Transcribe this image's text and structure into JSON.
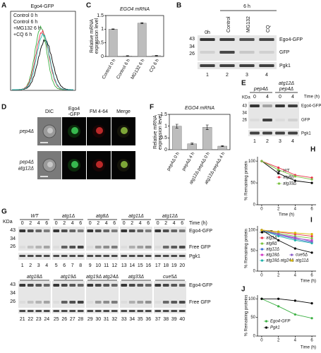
{
  "panels": {
    "A": {
      "letter": "A",
      "title": "Ego4-GFP",
      "legend": [
        "Control 0 h",
        "Control 6 h",
        "+MG132 6 h",
        "+CQ 6 h"
      ],
      "colors": [
        "#000000",
        "#3cb043",
        "#e8334a",
        "#20b2aa"
      ]
    },
    "B": {
      "letter": "B",
      "time": "6 h",
      "lanes": [
        "0h",
        "Control",
        "MG132",
        "CQ"
      ],
      "mw": [
        43,
        34,
        26
      ],
      "bands": [
        "Ego4-GFP",
        "GFP",
        "Pgk1"
      ],
      "numbers": [
        1,
        2,
        3,
        4
      ]
    },
    "C": {
      "letter": "C",
      "title": "EGO4 mRNA",
      "ylabel": [
        "Relative mRNA",
        "expression level"
      ],
      "categories": [
        "Control 0 h",
        "Control 6 h",
        "MG132 6 h",
        "CQ 6 h"
      ],
      "values": [
        1,
        0.02,
        1.22,
        0.03
      ],
      "errors": [
        0.01,
        0.01,
        0.02,
        0.01
      ],
      "ylim": [
        0,
        1.5
      ],
      "yticks": [
        0,
        0.5,
        1,
        1.5
      ],
      "color": "#bdbdbd"
    },
    "D": {
      "letter": "D",
      "columns": [
        [
          "DIC"
        ],
        [
          "Ego4",
          "-GFP"
        ],
        [
          "FM 4-64"
        ],
        [
          "Merge"
        ]
      ],
      "rows": [
        [
          "pep4Δ"
        ],
        [
          "pep4Δ",
          "atg12Δ"
        ]
      ]
    },
    "E": {
      "letter": "E",
      "groups": [
        [
          "pep4Δ"
        ],
        [
          "atg12Δ",
          "pep4Δ"
        ]
      ],
      "time_label": "Time (h)",
      "times": [
        0,
        4,
        0,
        4
      ],
      "unit": "KDa",
      "mw": [
        43,
        34,
        26
      ],
      "bands": [
        "Ego4-GFP",
        "GFP",
        "Pgk1"
      ],
      "numbers": [
        1,
        2,
        3,
        4
      ]
    },
    "F": {
      "letter": "F",
      "title": "EGO4 mRNA",
      "ylabel": [
        "Relative mRNA",
        "expression level"
      ],
      "categories": [
        "pep4Δ 0 h",
        "pep4Δ 4 h",
        "atg12Δ pep4Δ 0 h",
        "atg12Δ pep4Δ 4 h"
      ],
      "values": [
        1,
        0.25,
        0.95,
        0.15
      ],
      "errors": [
        0.08,
        0.03,
        0.1,
        0.02
      ],
      "ylim": [
        0,
        1.5
      ],
      "yticks": [
        0,
        0.5,
        1,
        1.5
      ],
      "color": "#bdbdbd"
    },
    "G": {
      "letter": "G",
      "unit": "KDa",
      "time_label": "Time (h)",
      "times": [
        0,
        2,
        4,
        6
      ],
      "rows": [
        {
          "strains": [
            "WT",
            "atg1Δ",
            "atg8Δ",
            "atg11Δ",
            "atg12Δ"
          ],
          "mw": [
            43,
            34,
            26
          ],
          "bands": [
            "Ego4-GFP",
            "Free GFP",
            "Pgk1"
          ],
          "lanes": [
            1,
            2,
            3,
            4,
            5,
            6,
            7,
            8,
            9,
            10,
            11,
            12,
            13,
            14,
            15,
            16,
            17,
            18,
            19,
            20
          ]
        },
        {
          "strains": [
            "atg18Δ",
            "atg19Δ",
            "atg19Δ atg24Δ",
            "atg33Δ",
            "cue5Δ"
          ],
          "mw": [
            43,
            34,
            26
          ],
          "bands": [
            "Ego4-GFP",
            "Free GFP"
          ],
          "lanes": [
            21,
            22,
            23,
            24,
            25,
            26,
            27,
            28,
            29,
            30,
            31,
            32,
            33,
            34,
            35,
            36,
            37,
            38,
            39,
            40
          ]
        }
      ]
    },
    "H": {
      "letter": "H",
      "ylabel": "% Remaining protein",
      "xlabel": "Time (h)",
      "x": [
        0,
        2,
        4,
        6
      ],
      "xlim": [
        -0.5,
        6.5
      ],
      "xticks": [
        0,
        2,
        4,
        6
      ],
      "ylim": [
        0,
        110
      ],
      "yticks": [
        0,
        50,
        100
      ],
      "series": [
        {
          "name": "WT",
          "color": "#000000",
          "values": [
            100,
            72,
            55,
            50
          ]
        },
        {
          "name": "atg8Δ",
          "color": "#e8334a",
          "values": [
            100,
            85,
            68,
            62
          ]
        },
        {
          "name": "atg33Δ",
          "color": "#7cc242",
          "values": [
            100,
            80,
            65,
            58
          ]
        }
      ]
    },
    "I": {
      "letter": "I",
      "ylabel": "% Remaining protein",
      "xlabel": "Time (h)",
      "x": [
        0,
        2,
        4,
        6
      ],
      "xlim": [
        -0.5,
        6.5
      ],
      "xticks": [
        0,
        2,
        4,
        6
      ],
      "ylim": [
        0,
        110
      ],
      "yticks": [
        0,
        50,
        100
      ],
      "series": [
        {
          "name": "WT",
          "color": "#000000",
          "values": [
            100,
            75,
            55,
            45
          ]
        },
        {
          "name": "atg1Δ",
          "color": "#e8334a",
          "values": [
            100,
            95,
            90,
            85
          ]
        },
        {
          "name": "atg8Δ",
          "color": "#7cc242",
          "values": [
            100,
            92,
            85,
            80
          ]
        },
        {
          "name": "atg12Δ",
          "color": "#3b6fd1",
          "values": [
            100,
            88,
            78,
            70
          ]
        },
        {
          "name": "atg18Δ",
          "color": "#d13bc7",
          "values": [
            100,
            90,
            80,
            75
          ]
        },
        {
          "name": "atg18Δ atg24Δ",
          "color": "#20b2aa",
          "values": [
            100,
            85,
            75,
            68
          ]
        },
        {
          "name": "cue5Δ",
          "color": "#8a5cc9",
          "values": [
            100,
            90,
            82,
            72
          ]
        },
        {
          "name": "atg11Δ",
          "color": "#d9b800",
          "values": [
            100,
            96,
            93,
            90
          ]
        }
      ]
    },
    "J": {
      "letter": "J",
      "ylabel": "% Remaining proteins",
      "xlabel": "Time (h)",
      "x": [
        0,
        2,
        4,
        6
      ],
      "xlim": [
        -0.5,
        6.5
      ],
      "xticks": [
        0,
        2,
        4,
        6
      ],
      "ylim": [
        0,
        110
      ],
      "yticks": [
        0,
        50,
        100
      ],
      "series": [
        {
          "name": "Ego4-GFP",
          "color": "#3cb043",
          "values": [
            100,
            80,
            58,
            48
          ]
        },
        {
          "name": "Pgk1",
          "color": "#000000",
          "values": [
            100,
            100,
            95,
            88
          ]
        }
      ]
    }
  }
}
